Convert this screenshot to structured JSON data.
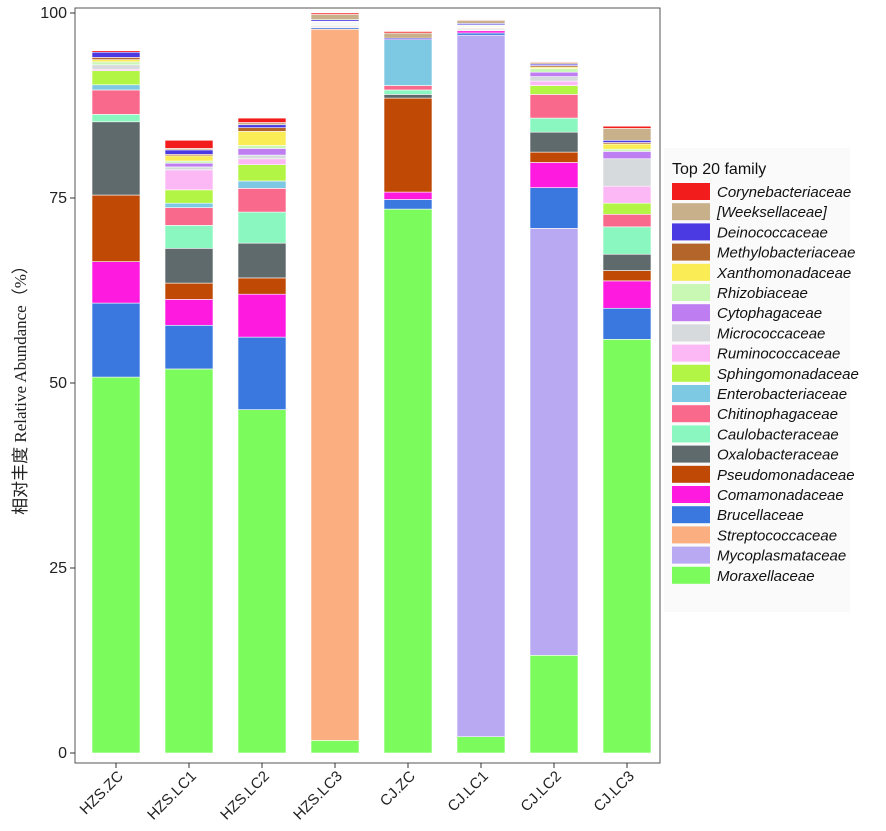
{
  "chart_data": {
    "type": "bar",
    "stacked": true,
    "ylabel": "相对丰度 Relative Abundance（%）",
    "ylim": [
      0,
      100
    ],
    "yticks": [
      0,
      25,
      50,
      75,
      100
    ],
    "categories": [
      "HZS.ZC",
      "HZS.LC1",
      "HZS.LC2",
      "HZS.LC3",
      "CJ.ZC",
      "CJ.LC1",
      "CJ.LC2",
      "CJ.LC3"
    ],
    "legend_title": "Top 20 family",
    "legend_position": "right",
    "series": [
      {
        "name": "Moraxellaceae",
        "color": "#7CFC5C",
        "values": [
          50.8,
          51.9,
          46.4,
          1.7,
          73.5,
          2.2,
          13.2,
          55.9
        ]
      },
      {
        "name": "Mycoplasmataceae",
        "color": "#B8A9F2",
        "values": [
          0,
          0,
          0,
          0,
          0,
          94.8,
          57.7,
          0
        ]
      },
      {
        "name": "Streptococcaceae",
        "color": "#FBAE80",
        "values": [
          0,
          0,
          0,
          96.1,
          0,
          0,
          0,
          0
        ]
      },
      {
        "name": "Brucellaceae",
        "color": "#3A78E0",
        "values": [
          10.0,
          5.9,
          9.8,
          0.2,
          1.3,
          0.3,
          5.5,
          4.2
        ]
      },
      {
        "name": "Comamonadaceae",
        "color": "#FF1AE0",
        "values": [
          5.6,
          3.5,
          5.8,
          0.1,
          1.0,
          0.3,
          3.4,
          3.7
        ]
      },
      {
        "name": "Pseudomonadaceae",
        "color": "#C04A05",
        "values": [
          9.0,
          2.2,
          2.2,
          0.1,
          12.7,
          0.1,
          1.4,
          1.4
        ]
      },
      {
        "name": "Oxalobacteraceae",
        "color": "#5E6A6C",
        "values": [
          9.9,
          4.7,
          4.7,
          0.1,
          0.5,
          0.1,
          2.7,
          2.2
        ]
      },
      {
        "name": "Caulobacteraceae",
        "color": "#8AF7C0",
        "values": [
          1.0,
          3.1,
          4.2,
          0.1,
          0.6,
          0.1,
          1.9,
          3.7
        ]
      },
      {
        "name": "Chitinophagaceae",
        "color": "#F8698C",
        "values": [
          3.3,
          2.4,
          3.2,
          0.1,
          0.6,
          0.1,
          3.2,
          1.7
        ]
      },
      {
        "name": "Enterobacteriaceae",
        "color": "#7DC8E2",
        "values": [
          0.7,
          0.6,
          1.0,
          0.1,
          6.2,
          0.1,
          0,
          0
        ]
      },
      {
        "name": "Sphingomonadaceae",
        "color": "#B2F545",
        "values": [
          1.9,
          1.8,
          2.2,
          0.1,
          0,
          0.1,
          1.2,
          1.5
        ]
      },
      {
        "name": "Ruminococcaceae",
        "color": "#FBB8F5",
        "values": [
          0.2,
          2.7,
          0.8,
          0.1,
          0,
          0.1,
          0.6,
          2.3
        ]
      },
      {
        "name": "Micrococcaceae",
        "color": "#D6DADC",
        "values": [
          0.6,
          0.4,
          0.5,
          0.1,
          0,
          0.1,
          0.6,
          3.7
        ]
      },
      {
        "name": "Cytophagaceae",
        "color": "#BE7EF2",
        "values": [
          0,
          0.5,
          0.9,
          0,
          0,
          0,
          0.6,
          1.0
        ]
      },
      {
        "name": "Rhizobiaceae",
        "color": "#C9F7B4",
        "values": [
          0.4,
          0.3,
          0.4,
          0,
          0,
          0,
          0.5,
          0.3
        ]
      },
      {
        "name": "Xanthomonadaceae",
        "color": "#F9EC54",
        "values": [
          0.3,
          0.7,
          1.9,
          0,
          0,
          0,
          0.2,
          0.7
        ]
      },
      {
        "name": "Methylobacteriaceae",
        "color": "#B4652A",
        "values": [
          0.3,
          0.2,
          0.5,
          0,
          0,
          0,
          0.2,
          0.2
        ]
      },
      {
        "name": "Deinococcaceae",
        "color": "#4B3AE2",
        "values": [
          0.7,
          0.6,
          0.4,
          0.2,
          0.2,
          0.2,
          0.2,
          0.3
        ]
      },
      {
        "name": "[Weeksellaceae]",
        "color": "#C7B08A",
        "values": [
          0,
          0.2,
          0.3,
          0.7,
          0.7,
          0.4,
          0.2,
          1.6
        ]
      },
      {
        "name": "Corynebacteriaceae",
        "color": "#F21C1C",
        "values": [
          0.2,
          1.1,
          0.6,
          0.2,
          0.2,
          0.1,
          0.1,
          0.3
        ]
      }
    ]
  }
}
